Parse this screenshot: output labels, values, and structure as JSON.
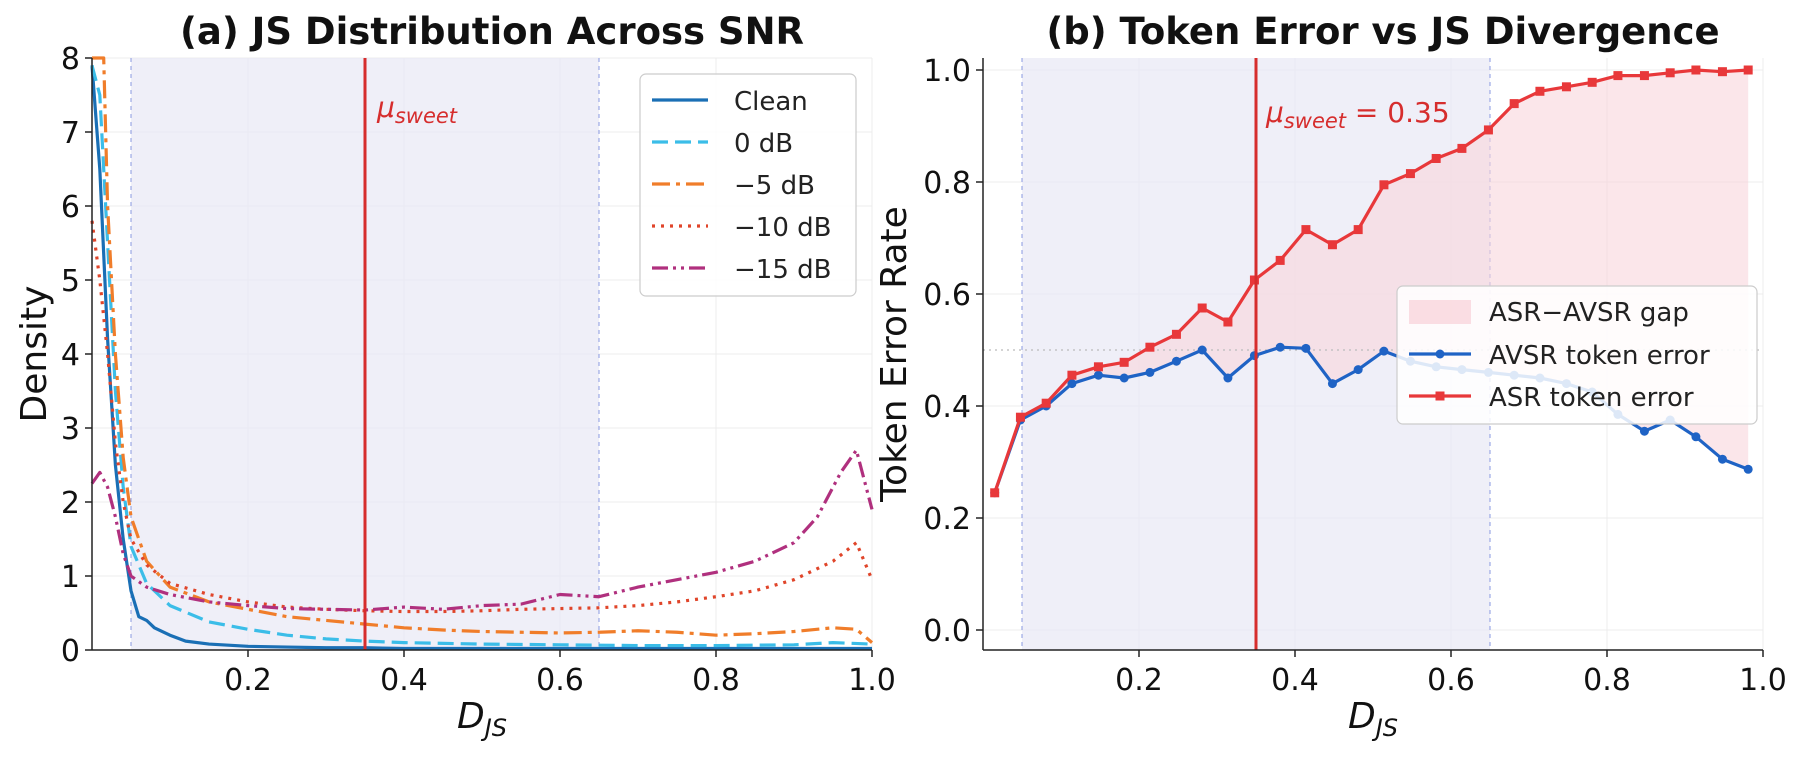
{
  "chart_data": [
    {
      "type": "line",
      "title": "(a)  JS Distribution Across SNR",
      "xlabel": "D",
      "xlabel_sub": "JS",
      "ylabel": "Density",
      "xlim": [
        0.0,
        1.0
      ],
      "ylim": [
        0,
        8
      ],
      "xticks": [
        "0.2",
        "0.4",
        "0.6",
        "0.8",
        "1.0"
      ],
      "yticks": [
        "0",
        "1",
        "2",
        "3",
        "4",
        "5",
        "6",
        "7",
        "8"
      ],
      "grid": true,
      "legend_position": "top-right",
      "shaded_region": [
        0.05,
        0.65
      ],
      "vline": {
        "x": 0.35,
        "label": "μ",
        "label_sub": "sweet",
        "color": "#d62d2d"
      },
      "series": [
        {
          "name": "Clean",
          "color": "#1a6fb5",
          "dash": "solid",
          "x": [
            0.0,
            0.01,
            0.02,
            0.03,
            0.04,
            0.05,
            0.06,
            0.07,
            0.08,
            0.1,
            0.12,
            0.15,
            0.2,
            0.25,
            0.3,
            0.35,
            0.4,
            0.5,
            0.6,
            0.7,
            0.8,
            0.9,
            0.95,
            1.0
          ],
          "y": [
            7.9,
            6.5,
            4.2,
            2.5,
            1.5,
            0.8,
            0.45,
            0.4,
            0.3,
            0.2,
            0.12,
            0.08,
            0.05,
            0.04,
            0.03,
            0.03,
            0.02,
            0.02,
            0.02,
            0.02,
            0.02,
            0.02,
            0.02,
            0.02
          ]
        },
        {
          "name": "0 dB",
          "color": "#3bbde8",
          "dash": "dashed",
          "x": [
            0.0,
            0.01,
            0.02,
            0.03,
            0.04,
            0.05,
            0.07,
            0.1,
            0.15,
            0.2,
            0.25,
            0.3,
            0.35,
            0.4,
            0.5,
            0.6,
            0.7,
            0.8,
            0.9,
            0.95,
            1.0
          ],
          "y": [
            7.9,
            7.5,
            5.5,
            3.5,
            2.2,
            1.4,
            0.9,
            0.6,
            0.38,
            0.28,
            0.2,
            0.15,
            0.12,
            0.1,
            0.08,
            0.07,
            0.06,
            0.06,
            0.07,
            0.1,
            0.08
          ]
        },
        {
          "name": "−5 dB",
          "color": "#f07d2a",
          "dash": "dashdot",
          "x": [
            0.0,
            0.015,
            0.02,
            0.03,
            0.04,
            0.05,
            0.07,
            0.1,
            0.15,
            0.2,
            0.25,
            0.3,
            0.35,
            0.4,
            0.45,
            0.5,
            0.55,
            0.6,
            0.65,
            0.7,
            0.75,
            0.8,
            0.85,
            0.9,
            0.95,
            0.98,
            1.0
          ],
          "y": [
            8.0,
            8.0,
            6.0,
            4.0,
            2.6,
            1.8,
            1.2,
            0.85,
            0.65,
            0.55,
            0.45,
            0.4,
            0.35,
            0.3,
            0.27,
            0.25,
            0.24,
            0.23,
            0.24,
            0.26,
            0.24,
            0.2,
            0.22,
            0.25,
            0.3,
            0.28,
            0.1
          ]
        },
        {
          "name": "−10 dB",
          "color": "#e0452a",
          "dash": "dotted",
          "x": [
            0.0,
            0.01,
            0.02,
            0.03,
            0.04,
            0.05,
            0.07,
            0.1,
            0.15,
            0.2,
            0.25,
            0.3,
            0.35,
            0.4,
            0.45,
            0.5,
            0.55,
            0.6,
            0.65,
            0.7,
            0.75,
            0.8,
            0.85,
            0.9,
            0.95,
            0.98,
            1.0
          ],
          "y": [
            5.8,
            5.0,
            4.0,
            2.8,
            2.0,
            1.5,
            1.15,
            0.9,
            0.75,
            0.65,
            0.58,
            0.55,
            0.53,
            0.52,
            0.52,
            0.53,
            0.55,
            0.56,
            0.57,
            0.6,
            0.65,
            0.72,
            0.8,
            0.95,
            1.2,
            1.45,
            0.95
          ]
        },
        {
          "name": "−15 dB",
          "color": "#b0307e",
          "dash": "dashdotdot",
          "x": [
            0.0,
            0.01,
            0.02,
            0.03,
            0.04,
            0.05,
            0.07,
            0.1,
            0.15,
            0.2,
            0.25,
            0.3,
            0.35,
            0.4,
            0.45,
            0.5,
            0.55,
            0.6,
            0.65,
            0.7,
            0.75,
            0.8,
            0.85,
            0.9,
            0.93,
            0.96,
            0.98,
            1.0
          ],
          "y": [
            2.25,
            2.4,
            2.2,
            1.8,
            1.3,
            1.0,
            0.85,
            0.75,
            0.65,
            0.6,
            0.56,
            0.55,
            0.54,
            0.58,
            0.55,
            0.6,
            0.62,
            0.75,
            0.72,
            0.85,
            0.95,
            1.05,
            1.2,
            1.45,
            1.8,
            2.4,
            2.7,
            1.9
          ]
        }
      ]
    },
    {
      "type": "line",
      "title": "(b)  Token Error vs JS Divergence",
      "xlabel": "D",
      "xlabel_sub": "JS",
      "ylabel": "Token Error Rate",
      "xlim": [
        0.0,
        1.0
      ],
      "ylim": [
        0.0,
        1.0
      ],
      "xticks": [
        "0.2",
        "0.4",
        "0.6",
        "0.8",
        "1.0"
      ],
      "yticks": [
        "0.0",
        "0.2",
        "0.4",
        "0.6",
        "0.8",
        "1.0"
      ],
      "grid": true,
      "legend_position": "center-right",
      "shaded_region": [
        0.05,
        0.65
      ],
      "hline_dotted": 0.5,
      "vline": {
        "x": 0.35,
        "label": "μ",
        "label_sub": "sweet",
        "label_suffix": " = 0.35",
        "color": "#d62d2d"
      },
      "x": [
        0.015,
        0.048,
        0.081,
        0.114,
        0.148,
        0.181,
        0.214,
        0.248,
        0.281,
        0.314,
        0.348,
        0.381,
        0.414,
        0.448,
        0.481,
        0.514,
        0.548,
        0.581,
        0.614,
        0.648,
        0.681,
        0.714,
        0.748,
        0.781,
        0.814,
        0.848,
        0.881,
        0.914,
        0.948,
        0.981
      ],
      "series": [
        {
          "name": "AVSR token error",
          "color": "#1f63c5",
          "marker": "circle",
          "values": [
            0.245,
            0.375,
            0.4,
            0.44,
            0.455,
            0.45,
            0.46,
            0.48,
            0.5,
            0.45,
            0.49,
            0.505,
            0.503,
            0.44,
            0.465,
            0.498,
            0.48,
            0.47,
            0.465,
            0.46,
            0.455,
            0.45,
            0.44,
            0.425,
            0.385,
            0.355,
            0.375,
            0.345,
            0.305,
            0.287
          ]
        },
        {
          "name": "ASR token error",
          "color": "#e8383a",
          "marker": "square",
          "values": [
            0.245,
            0.38,
            0.405,
            0.455,
            0.47,
            0.478,
            0.505,
            0.528,
            0.575,
            0.55,
            0.625,
            0.66,
            0.715,
            0.688,
            0.715,
            0.795,
            0.815,
            0.842,
            0.86,
            0.893,
            0.94,
            0.962,
            0.97,
            0.978,
            0.99,
            0.99,
            0.995,
            1.0,
            0.997,
            1.0
          ]
        }
      ],
      "fill_between": {
        "name": "ASR−AVSR gap",
        "color": "#f9d6dc"
      }
    }
  ]
}
